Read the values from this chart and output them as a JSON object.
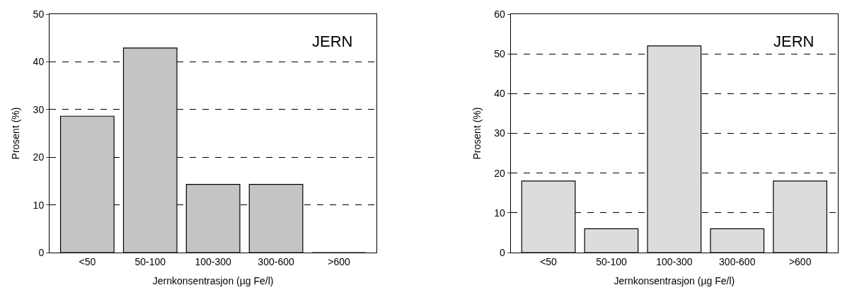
{
  "chart_data": [
    {
      "type": "bar",
      "categories": [
        "<50",
        "50-100",
        "100-300",
        "300-600",
        ">600"
      ],
      "values": [
        28.6,
        42.9,
        14.3,
        14.3,
        0
      ],
      "color": "#c4c4c4",
      "xlabel": "Jernkonsentrasjon (µg Fe/l)",
      "ylabel": "Prosent (%)",
      "ylim": [
        0,
        50
      ],
      "yticks": [
        0,
        10,
        20,
        30,
        40,
        50
      ],
      "grid": "y",
      "annotations": [
        "JERN"
      ]
    },
    {
      "type": "bar",
      "categories": [
        "<50",
        "50-100",
        "100-300",
        "300-600",
        ">600"
      ],
      "values": [
        18,
        6,
        52,
        6,
        18
      ],
      "color": "#dcdcdc",
      "xlabel": "Jernkonsentrasjon (µg Fe/l)",
      "ylabel": "Prosent (%)",
      "ylim": [
        0,
        60
      ],
      "yticks": [
        0,
        10,
        20,
        30,
        40,
        50,
        60
      ],
      "grid": "y",
      "annotations": [
        "JERN"
      ]
    }
  ]
}
